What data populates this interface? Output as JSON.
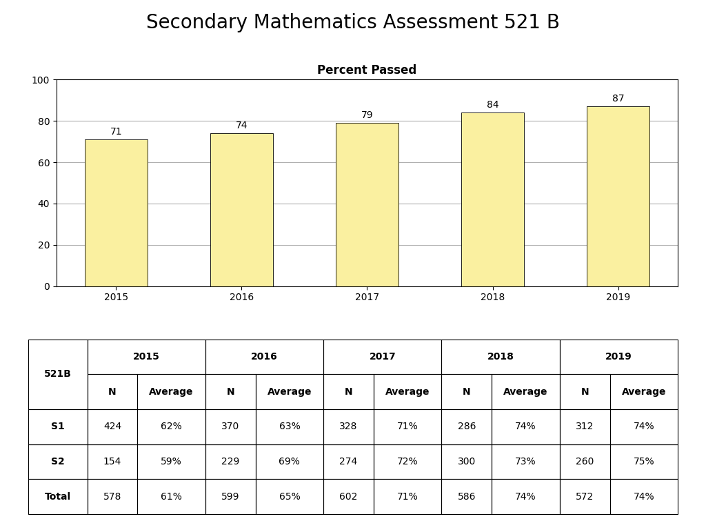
{
  "title": "Secondary Mathematics Assessment 521 B",
  "chart_data": [
    {
      "type": "bar",
      "title": "Percent Passed",
      "categories": [
        "2015",
        "2016",
        "2017",
        "2018",
        "2019"
      ],
      "values": [
        71,
        74,
        79,
        84,
        87
      ],
      "color": "#FAF0A0",
      "ylim": [
        0,
        100
      ],
      "yticks": [
        0,
        20,
        40,
        60,
        80,
        100
      ],
      "grid": true,
      "data_labels": true
    },
    {
      "type": "table",
      "title": "521B",
      "column_groups": [
        "2015",
        "2016",
        "2017",
        "2018",
        "2019"
      ],
      "columns": [
        "N",
        "Average",
        "N",
        "Average",
        "N",
        "Average",
        "N",
        "Average",
        "N",
        "Average"
      ],
      "row_labels": [
        "S1",
        "S2",
        "Total"
      ],
      "cells": [
        [
          "424",
          "62%",
          "370",
          "63%",
          "328",
          "71%",
          "286",
          "74%",
          "312",
          "74%"
        ],
        [
          "154",
          "59%",
          "229",
          "69%",
          "274",
          "72%",
          "300",
          "73%",
          "260",
          "75%"
        ],
        [
          "578",
          "61%",
          "599",
          "65%",
          "602",
          "71%",
          "586",
          "74%",
          "572",
          "74%"
        ]
      ]
    }
  ]
}
